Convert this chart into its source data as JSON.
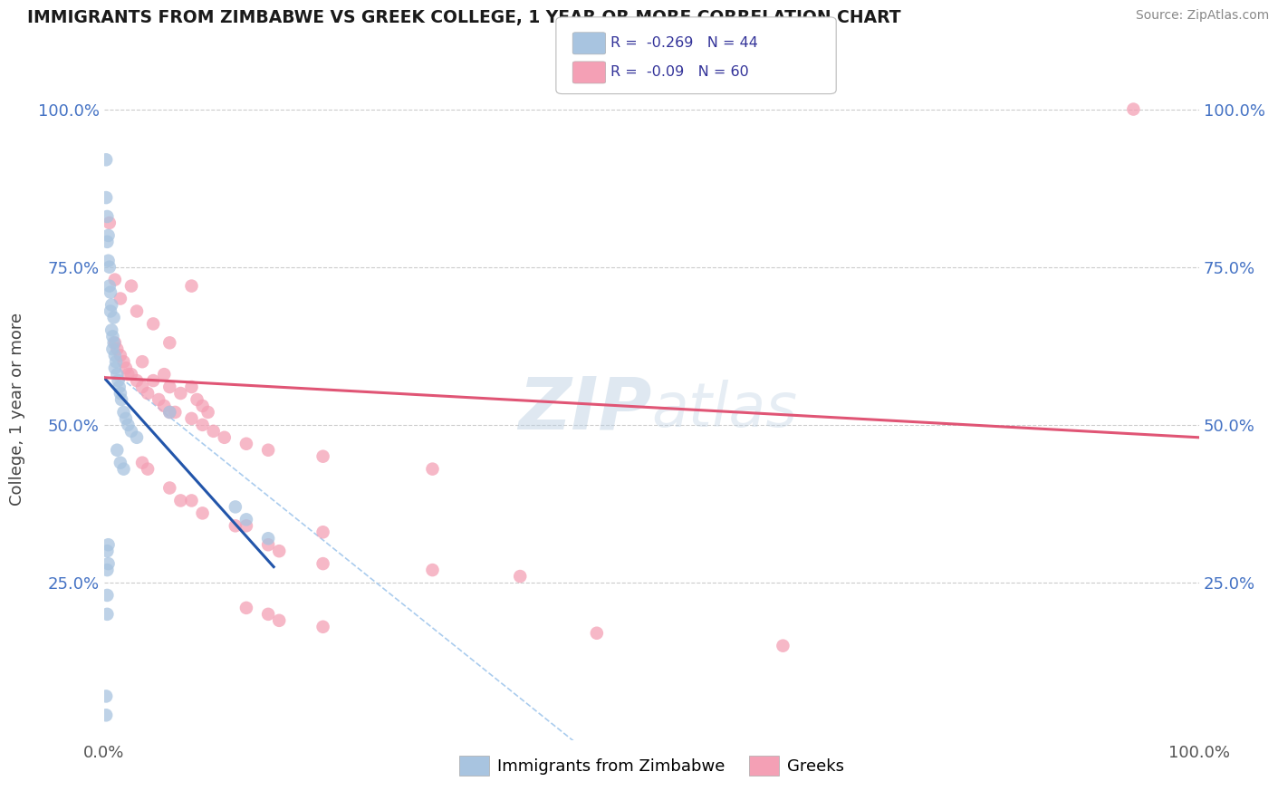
{
  "title": "IMMIGRANTS FROM ZIMBABWE VS GREEK COLLEGE, 1 YEAR OR MORE CORRELATION CHART",
  "source": "Source: ZipAtlas.com",
  "ylabel": "College, 1 year or more",
  "legend_label1": "Immigrants from Zimbabwe",
  "legend_label2": "Greeks",
  "r1": -0.269,
  "n1": 44,
  "r2": -0.09,
  "n2": 60,
  "color1": "#a8c4e0",
  "color2": "#f4a0b5",
  "line1_color": "#2255aa",
  "line2_color": "#e05575",
  "dash_color": "#aaccee",
  "watermark_color": "#c8d8ec",
  "blue_dots": [
    [
      0.002,
      0.92
    ],
    [
      0.002,
      0.86
    ],
    [
      0.003,
      0.83
    ],
    [
      0.003,
      0.79
    ],
    [
      0.004,
      0.8
    ],
    [
      0.004,
      0.76
    ],
    [
      0.005,
      0.75
    ],
    [
      0.005,
      0.72
    ],
    [
      0.006,
      0.71
    ],
    [
      0.006,
      0.68
    ],
    [
      0.007,
      0.69
    ],
    [
      0.007,
      0.65
    ],
    [
      0.008,
      0.64
    ],
    [
      0.008,
      0.62
    ],
    [
      0.009,
      0.67
    ],
    [
      0.009,
      0.63
    ],
    [
      0.01,
      0.61
    ],
    [
      0.01,
      0.59
    ],
    [
      0.011,
      0.6
    ],
    [
      0.012,
      0.58
    ],
    [
      0.013,
      0.57
    ],
    [
      0.014,
      0.56
    ],
    [
      0.015,
      0.55
    ],
    [
      0.016,
      0.54
    ],
    [
      0.018,
      0.52
    ],
    [
      0.02,
      0.51
    ],
    [
      0.022,
      0.5
    ],
    [
      0.025,
      0.49
    ],
    [
      0.03,
      0.48
    ],
    [
      0.012,
      0.46
    ],
    [
      0.015,
      0.44
    ],
    [
      0.018,
      0.43
    ],
    [
      0.06,
      0.52
    ],
    [
      0.003,
      0.3
    ],
    [
      0.003,
      0.27
    ],
    [
      0.003,
      0.23
    ],
    [
      0.003,
      0.2
    ],
    [
      0.004,
      0.31
    ],
    [
      0.004,
      0.28
    ],
    [
      0.002,
      0.07
    ],
    [
      0.002,
      0.04
    ],
    [
      0.12,
      0.37
    ],
    [
      0.13,
      0.35
    ],
    [
      0.15,
      0.32
    ]
  ],
  "pink_dots": [
    [
      0.005,
      0.82
    ],
    [
      0.01,
      0.73
    ],
    [
      0.015,
      0.7
    ],
    [
      0.025,
      0.72
    ],
    [
      0.03,
      0.68
    ],
    [
      0.045,
      0.66
    ],
    [
      0.06,
      0.63
    ],
    [
      0.035,
      0.6
    ],
    [
      0.045,
      0.57
    ],
    [
      0.055,
      0.58
    ],
    [
      0.06,
      0.56
    ],
    [
      0.07,
      0.55
    ],
    [
      0.08,
      0.56
    ],
    [
      0.085,
      0.54
    ],
    [
      0.09,
      0.53
    ],
    [
      0.095,
      0.52
    ],
    [
      0.01,
      0.63
    ],
    [
      0.012,
      0.62
    ],
    [
      0.015,
      0.61
    ],
    [
      0.018,
      0.6
    ],
    [
      0.02,
      0.59
    ],
    [
      0.022,
      0.58
    ],
    [
      0.025,
      0.58
    ],
    [
      0.03,
      0.57
    ],
    [
      0.035,
      0.56
    ],
    [
      0.04,
      0.55
    ],
    [
      0.05,
      0.54
    ],
    [
      0.055,
      0.53
    ],
    [
      0.06,
      0.52
    ],
    [
      0.065,
      0.52
    ],
    [
      0.08,
      0.51
    ],
    [
      0.09,
      0.5
    ],
    [
      0.1,
      0.49
    ],
    [
      0.11,
      0.48
    ],
    [
      0.13,
      0.47
    ],
    [
      0.15,
      0.46
    ],
    [
      0.2,
      0.45
    ],
    [
      0.3,
      0.43
    ],
    [
      0.035,
      0.44
    ],
    [
      0.04,
      0.43
    ],
    [
      0.06,
      0.4
    ],
    [
      0.07,
      0.38
    ],
    [
      0.08,
      0.38
    ],
    [
      0.09,
      0.36
    ],
    [
      0.13,
      0.34
    ],
    [
      0.2,
      0.33
    ],
    [
      0.12,
      0.34
    ],
    [
      0.15,
      0.31
    ],
    [
      0.16,
      0.3
    ],
    [
      0.2,
      0.28
    ],
    [
      0.3,
      0.27
    ],
    [
      0.38,
      0.26
    ],
    [
      0.13,
      0.21
    ],
    [
      0.15,
      0.2
    ],
    [
      0.16,
      0.19
    ],
    [
      0.2,
      0.18
    ],
    [
      0.45,
      0.17
    ],
    [
      0.62,
      0.15
    ],
    [
      0.94,
      1.0
    ],
    [
      0.08,
      0.72
    ]
  ],
  "blue_line": [
    [
      0.0,
      0.575
    ],
    [
      0.155,
      0.275
    ]
  ],
  "pink_line": [
    [
      0.0,
      0.575
    ],
    [
      1.0,
      0.48
    ]
  ],
  "dash_line": [
    [
      0.015,
      0.575
    ],
    [
      0.5,
      -0.1
    ]
  ],
  "xlim": [
    0.0,
    1.0
  ],
  "ylim": [
    0.0,
    1.05
  ],
  "xtick_positions": [
    0.0,
    1.0
  ],
  "xtick_labels": [
    "0.0%",
    "100.0%"
  ],
  "ytick_positions": [
    0.0,
    0.25,
    0.5,
    0.75,
    1.0
  ],
  "ytick_labels": [
    "",
    "25.0%",
    "50.0%",
    "75.0%",
    "100.0%"
  ],
  "grid_lines": [
    0.25,
    0.5,
    0.75,
    1.0
  ],
  "dot_size": 110
}
